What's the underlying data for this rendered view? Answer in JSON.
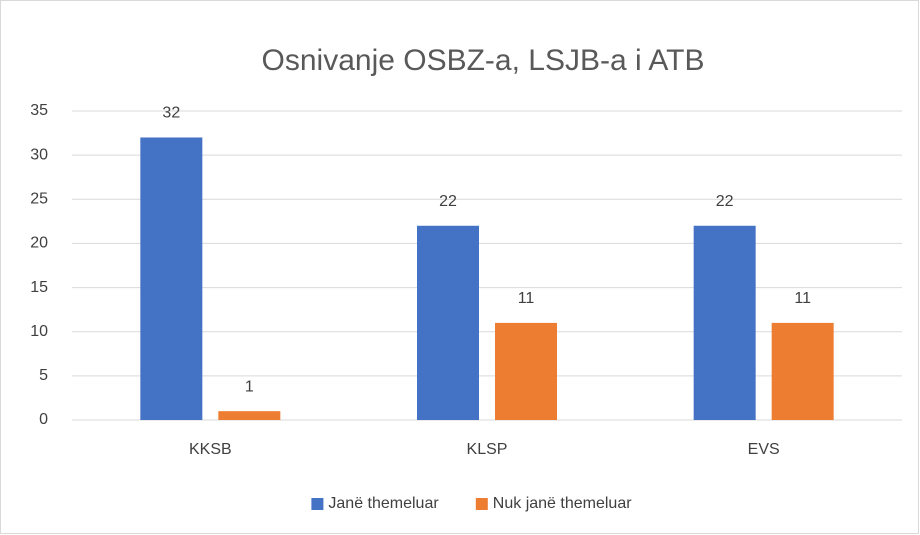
{
  "chart_data": {
    "type": "bar",
    "title": "Osnivanje OSBZ-a, LSJB-a i ATB",
    "categories": [
      "KKSB",
      "KLSP",
      "EVS"
    ],
    "series": [
      {
        "name": "Janë themeluar",
        "color": "#4472c4",
        "values": [
          32,
          22,
          22
        ]
      },
      {
        "name": "Nuk janë themeluar",
        "color": "#ed7d31",
        "values": [
          1,
          11,
          11
        ]
      }
    ],
    "ylim": [
      0,
      35
    ],
    "yticks": [
      0,
      5,
      10,
      15,
      20,
      25,
      30,
      35
    ],
    "grid": true,
    "legend": "bottom"
  }
}
